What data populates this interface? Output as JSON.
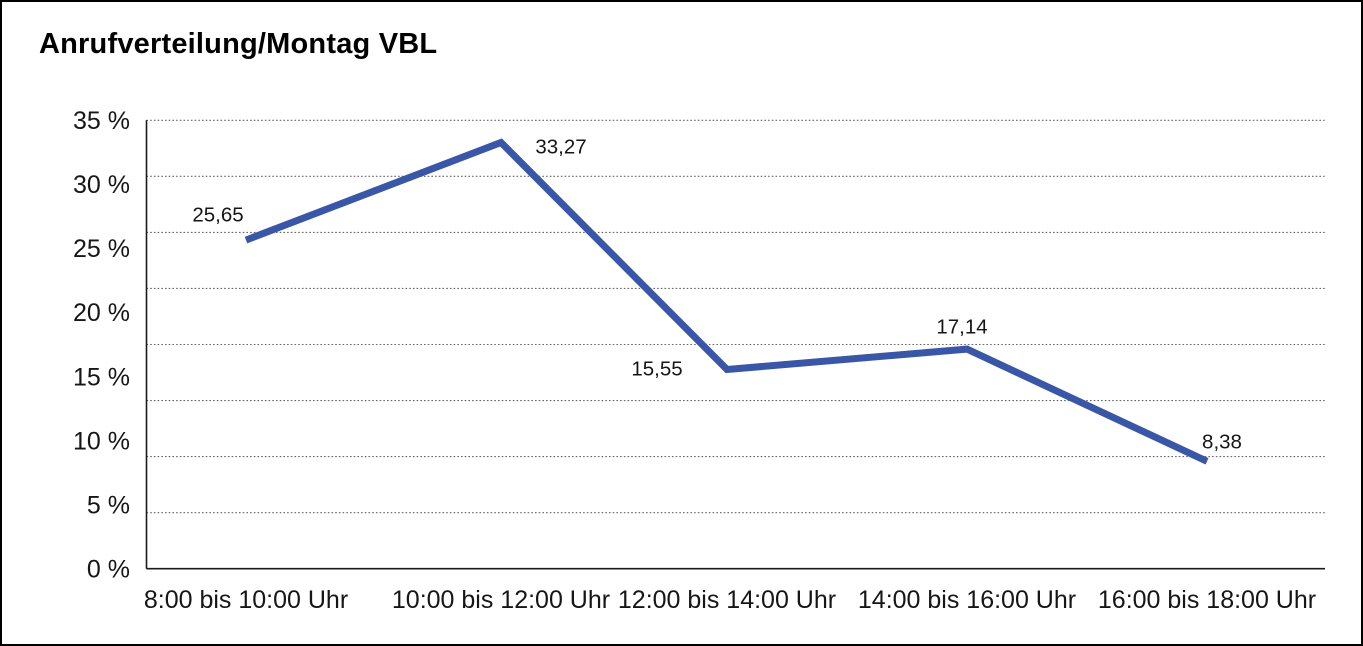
{
  "window": {
    "background_color": "#ffffff",
    "border_color": "#000000"
  },
  "chart_data": {
    "type": "line",
    "title": "Anrufverteilung/Montag VBL",
    "categories": [
      "8:00 bis 10:00 Uhr",
      "10:00 bis 12:00 Uhr",
      "12:00 bis 14:00 Uhr",
      "14:00 bis 16:00 Uhr",
      "16:00 bis 18:00 Uhr"
    ],
    "values": [
      25.65,
      33.27,
      15.55,
      17.14,
      8.38
    ],
    "value_labels": [
      "25,65",
      "33,27",
      "15,55",
      "17,14",
      "8,38"
    ],
    "xlabel": "",
    "ylabel": "",
    "ylim": [
      0,
      35
    ],
    "ytick_step": 5,
    "ytick_labels": [
      "0 %",
      "5 %",
      "10 %",
      "15 %",
      "20 %",
      "25 %",
      "30 %",
      "35 %"
    ],
    "grid": "horizontal-dotted",
    "gridline_count_intervals": 8,
    "legend": "none",
    "line_color": "#3A57A7",
    "grid_color": "#666666",
    "axis_color": "#1a1a1a",
    "text_color": "#161616"
  }
}
